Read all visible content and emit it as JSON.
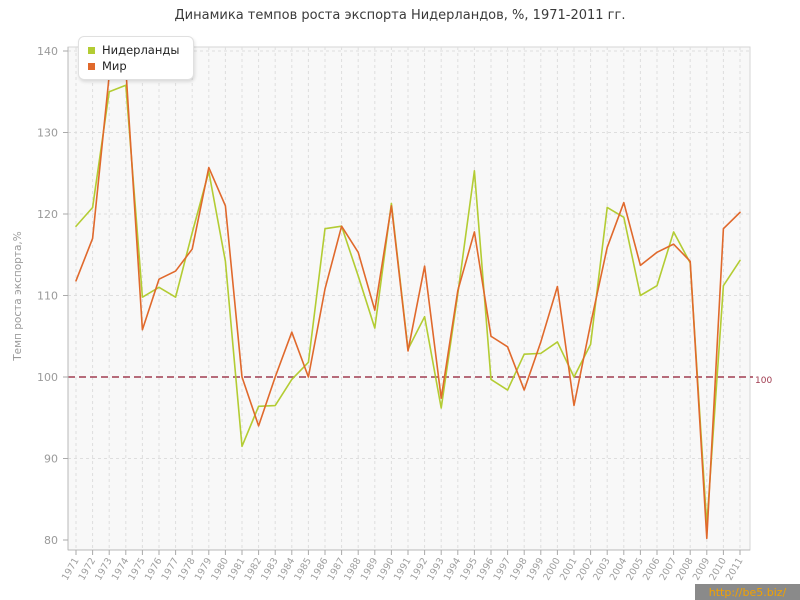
{
  "title": "Динамика темпов роста экспорта Нидерландов, %, 1971-2011 гг.",
  "y_axis_title": "Темп роста экспорта,%",
  "legend": {
    "items": [
      {
        "label": "Нидерланды",
        "color": "#b3cc33"
      },
      {
        "label": "Мир",
        "color": "#e0692c"
      }
    ]
  },
  "reference_line": {
    "value": 100,
    "label": "100",
    "color": "#a03c50"
  },
  "watermark": {
    "text": "http://be5.biz/",
    "bg": "#8a8a8a",
    "fg": "#f2a200"
  },
  "chart_data": {
    "type": "line",
    "title": "Динамика темпов роста экспорта Нидерландов, %, 1971-2011 гг.",
    "xlabel": "",
    "ylabel": "Темп роста экспорта,%",
    "ylim": [
      80,
      140
    ],
    "yticks": [
      80,
      90,
      100,
      110,
      120,
      130,
      140
    ],
    "grid": true,
    "legend_position": "top-left",
    "reference_line": 100,
    "x": [
      1971,
      1972,
      1973,
      1974,
      1975,
      1976,
      1977,
      1978,
      1979,
      1980,
      1981,
      1982,
      1983,
      1984,
      1985,
      1986,
      1987,
      1988,
      1989,
      1990,
      1991,
      1992,
      1993,
      1994,
      1995,
      1996,
      1997,
      1998,
      1999,
      2000,
      2001,
      2002,
      2003,
      2004,
      2005,
      2006,
      2007,
      2008,
      2009,
      2010,
      2011
    ],
    "series": [
      {
        "name": "Нидерланды",
        "color": "#b3cc33",
        "values": [
          118.5,
          120.8,
          135.0,
          135.8,
          109.8,
          111.0,
          109.8,
          117.7,
          125.2,
          114.2,
          91.5,
          96.4,
          96.5,
          99.7,
          101.8,
          118.2,
          118.5,
          112.4,
          106.0,
          121.3,
          103.4,
          107.4,
          96.2,
          110.2,
          125.3,
          99.7,
          98.4,
          102.8,
          102.9,
          104.3,
          100.0,
          104.0,
          120.8,
          119.6,
          110.0,
          111.2,
          117.8,
          114.0,
          81.8,
          111.2,
          114.3
        ]
      },
      {
        "name": "Мир",
        "color": "#e0692c",
        "values": [
          111.8,
          117.0,
          137.0,
          137.9,
          105.8,
          112.0,
          113.0,
          115.7,
          125.7,
          121.0,
          100.0,
          94.0,
          100.0,
          105.5,
          100.0,
          110.8,
          118.5,
          115.3,
          108.2,
          121.0,
          103.2,
          113.6,
          97.4,
          110.6,
          117.8,
          105.0,
          103.7,
          98.4,
          104.3,
          111.1,
          96.5,
          106.5,
          115.9,
          121.4,
          113.7,
          115.3,
          116.3,
          114.2,
          80.2,
          118.2,
          120.2
        ]
      }
    ]
  }
}
